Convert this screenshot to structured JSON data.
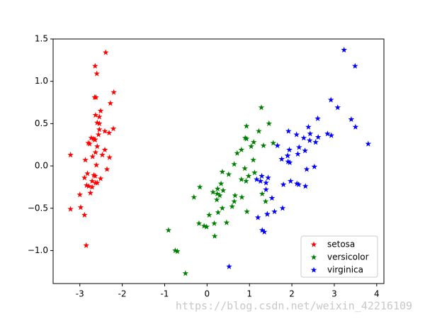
{
  "chart_data": {
    "type": "scatter",
    "xlim": [
      -3.63,
      4.17
    ],
    "ylim": [
      -1.39,
      1.5
    ],
    "xticks": [
      -3,
      -2,
      -1,
      0,
      1,
      2,
      3,
      4
    ],
    "yticks": [
      {
        "value": -1,
        "label": "−1.0"
      },
      {
        "value": -0.5,
        "label": "−0.5"
      },
      {
        "value": 0,
        "label": "0.0"
      },
      {
        "value": 0.5,
        "label": "0.5"
      },
      {
        "value": 1,
        "label": "1.0"
      },
      {
        "value": 1.5,
        "label": "1.5"
      }
    ],
    "legend": "lower right",
    "series": [
      {
        "name": "setosa",
        "color": "#ff0000",
        "x": [
          -2.68,
          -2.71,
          -2.89,
          -2.75,
          -2.73,
          -2.28,
          -2.82,
          -2.63,
          -2.89,
          -2.67,
          -2.51,
          -2.61,
          -2.79,
          -3.22,
          -2.64,
          -2.39,
          -2.62,
          -2.65,
          -2.2,
          -2.59,
          -2.31,
          -2.54,
          -3.22,
          -2.3,
          -2.36,
          -2.51,
          -2.47,
          -2.56,
          -2.64,
          -2.63,
          -2.59,
          -2.41,
          -2.65,
          -2.6,
          -2.64,
          -2.87,
          -2.63,
          -2.8,
          -2.98,
          -2.59,
          -2.77,
          -2.85,
          -3,
          -2.41,
          -2.21,
          -2.71,
          -2.54,
          -2.84,
          -2.54,
          -2.7
        ],
        "y": [
          0.32,
          -0.18,
          -0.14,
          -0.32,
          0.33,
          0.74,
          -0.09,
          0.16,
          -0.58,
          -0.11,
          0.65,
          0.01,
          -0.24,
          -0.51,
          1.18,
          1.34,
          0.81,
          0.31,
          0.87,
          0.51,
          0.39,
          0.43,
          0.13,
          0.1,
          -0.04,
          -0.15,
          0.13,
          0.37,
          0.31,
          -0.2,
          -0.2,
          0.41,
          0.81,
          1.09,
          -0.12,
          0.07,
          0.6,
          0.27,
          -0.49,
          0.23,
          0.26,
          -0.94,
          -0.34,
          0.19,
          0.44,
          -0.25,
          0.5,
          -0.23,
          0.58,
          0.11
        ]
      },
      {
        "name": "versicolor",
        "color": "#008000",
        "x": [
          1.28,
          0.93,
          1.46,
          0.18,
          1.09,
          0.64,
          1.1,
          -0.75,
          1.04,
          -0.01,
          -0.51,
          0.51,
          0.26,
          0.98,
          -0.17,
          0.93,
          0.66,
          0.24,
          0.94,
          0.05,
          1.12,
          0.36,
          1.3,
          0.92,
          0.71,
          0.9,
          1.33,
          1.56,
          0.81,
          -0.31,
          -0.07,
          -0.19,
          0.14,
          1.38,
          0.59,
          0.81,
          1.22,
          0.82,
          0.25,
          0.17,
          0.46,
          0.89,
          0.23,
          -0.7,
          0.36,
          0.33,
          0.38,
          0.64,
          -0.91,
          0.3
        ],
        "y": [
          0.69,
          0.32,
          0.5,
          -0.83,
          0.07,
          -0.42,
          0.28,
          -1,
          0.23,
          -0.72,
          -1.27,
          -0.1,
          -0.55,
          -0.12,
          -0.25,
          0.47,
          -0.35,
          -0.33,
          -0.54,
          -0.58,
          -0.08,
          -0.07,
          -0.33,
          -0.18,
          0.15,
          0.33,
          0.24,
          0.27,
          -0.16,
          -0.37,
          -0.71,
          -0.68,
          -0.31,
          -0.42,
          -0.48,
          0.19,
          0.41,
          -0.37,
          -0.27,
          -0.68,
          -0.67,
          -0.03,
          -0.4,
          -1.01,
          -0.5,
          -0.21,
          -0.29,
          0.02,
          -0.76,
          -0.35
        ]
      },
      {
        "name": "virginica",
        "color": "#0000ff",
        "x": [
          2.53,
          1.42,
          2.62,
          1.97,
          2.35,
          3.4,
          0.52,
          2.93,
          2.32,
          2.92,
          1.66,
          1.8,
          2.17,
          1.35,
          1.59,
          1.9,
          1.95,
          3.49,
          3.8,
          1.3,
          2.43,
          1.2,
          3.5,
          1.39,
          2.28,
          2.61,
          1.26,
          1.29,
          2.12,
          2.39,
          2.84,
          3.23,
          2.16,
          1.44,
          1.78,
          3.08,
          2.14,
          1.91,
          1.17,
          2.11,
          2.31,
          1.92,
          1.42,
          2.56,
          2.42,
          1.94,
          1.53,
          1.76,
          1.9,
          1.39
        ],
        "y": [
          -0.01,
          -0.57,
          0.34,
          -0.18,
          -0.04,
          0.55,
          -1.19,
          0.36,
          -0.24,
          0.78,
          0.24,
          -0.22,
          0.22,
          -0.78,
          -0.54,
          0.12,
          0.04,
          1.18,
          0.26,
          -0.76,
          0.38,
          -0.61,
          0.46,
          -0.2,
          0.33,
          0.56,
          -0.18,
          -0.12,
          -0.21,
          0.46,
          0.38,
          1.37,
          -0.22,
          -0.14,
          -0.5,
          0.69,
          0.14,
          0.05,
          -0.16,
          0.37,
          0.18,
          0.41,
          -0.57,
          0.28,
          0.3,
          0.19,
          -0.38,
          0.08,
          0.12,
          -0.28
        ]
      }
    ],
    "watermark": "https://blog.csdn.net/weixin_42216109"
  }
}
